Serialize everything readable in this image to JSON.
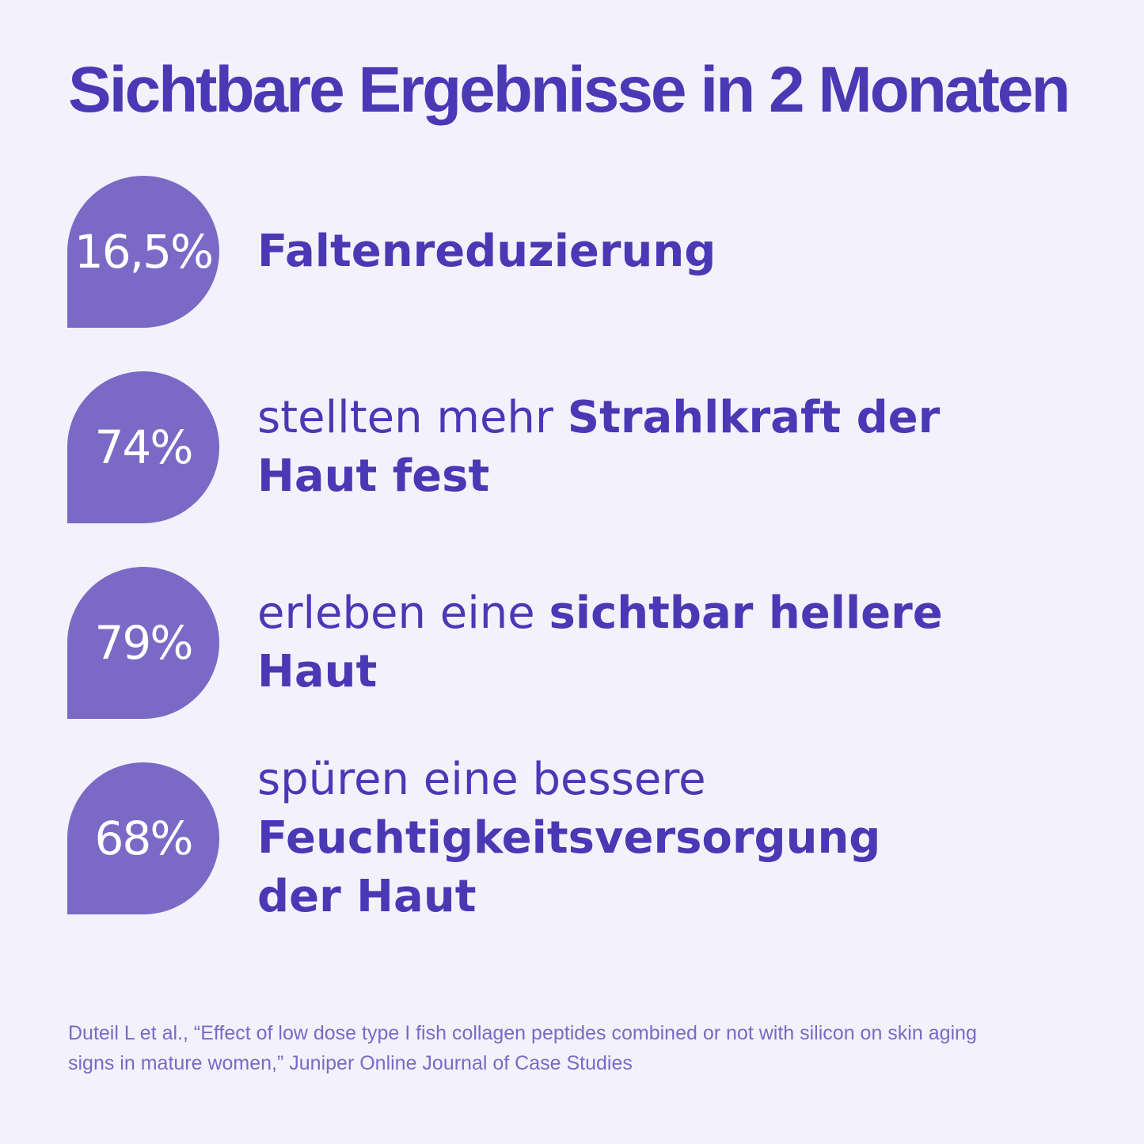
{
  "title": "Sichtbare Ergebnisse in 2 Monaten",
  "colors": {
    "background": "#f3f2fc",
    "primary_text": "#4a38b5",
    "drop_fill": "#7b69c6",
    "drop_text": "#ffffff",
    "footnote": "#7b69c6"
  },
  "stats": [
    {
      "percent": "16,5%",
      "light_text": "",
      "bold_text": "Faltenreduzierung"
    },
    {
      "percent": "74%",
      "light_text": "stellten mehr ",
      "bold_text": "Strahlkraft der Haut fest"
    },
    {
      "percent": "79%",
      "light_text": "erleben eine ",
      "bold_text": "sichtbar hellere Haut"
    },
    {
      "percent": "68%",
      "light_text": "spüren eine bessere ",
      "bold_text": "Feuchtigkeitsversorgung der Haut"
    }
  ],
  "footnote": "Duteil L et al., “Effect of low dose type I fish collagen peptides combined or not with silicon on skin aging signs in mature women,” Juniper Online Journal of Case Studies"
}
